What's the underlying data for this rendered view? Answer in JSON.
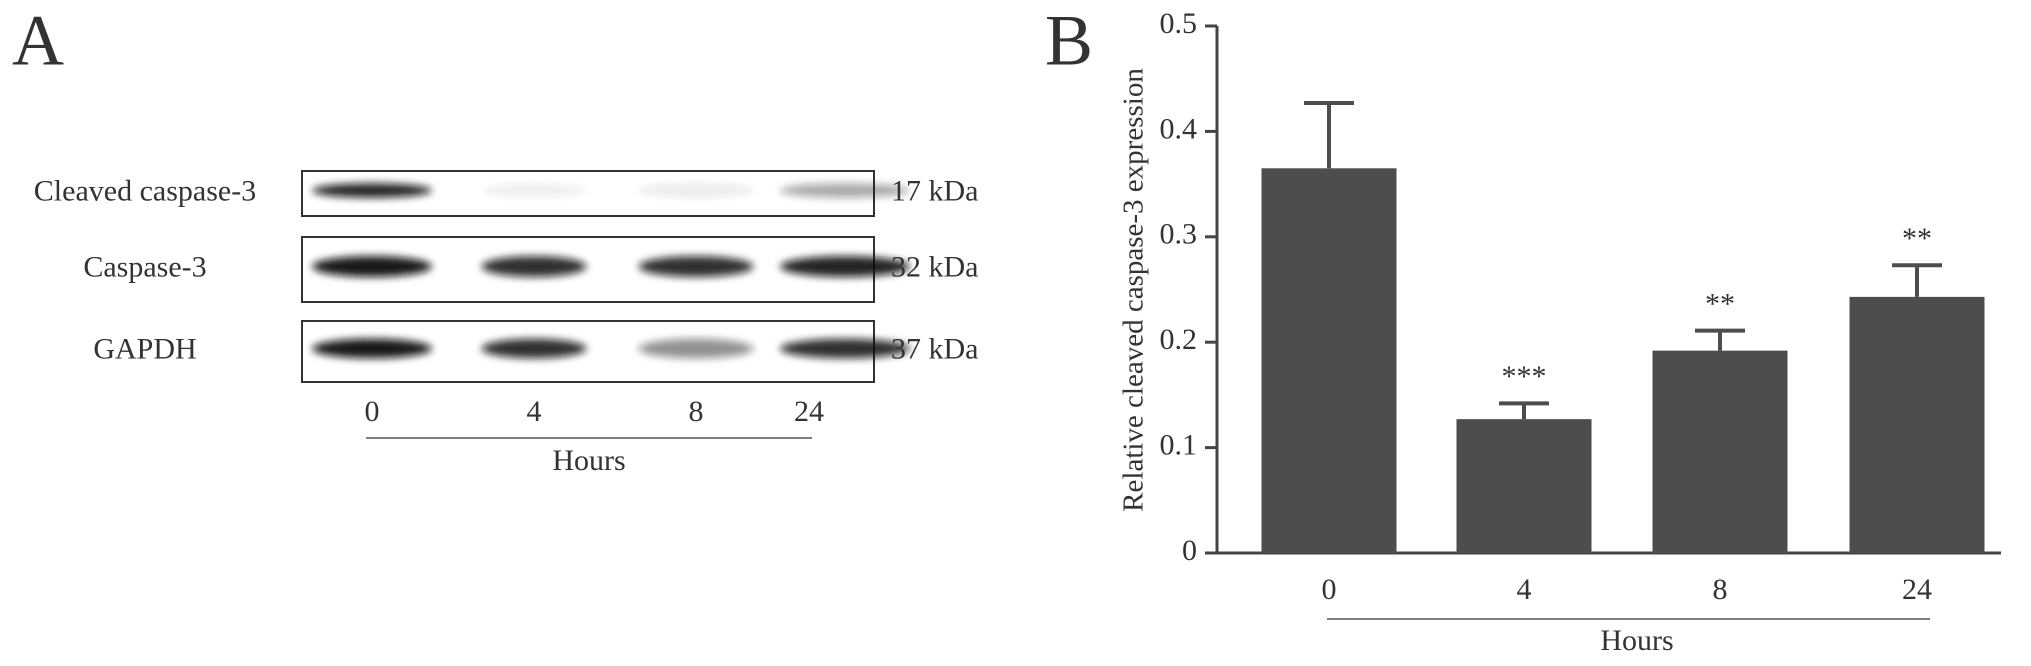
{
  "panel_a": {
    "label": "A",
    "rows": [
      {
        "name": "Cleaved caspase-3",
        "size": "17 kDa"
      },
      {
        "name": "Caspase-3",
        "size": "32 kDa"
      },
      {
        "name": "GAPDH",
        "size": "37 kDa"
      }
    ],
    "lanes": [
      "0",
      "4",
      "8",
      "24"
    ],
    "xlabel": "Hours"
  },
  "chart_data": {
    "type": "bar",
    "label": "B",
    "ylabel": "Relative cleaved caspase-3 expression",
    "xlabel": "Hours",
    "categories": [
      "0",
      "4",
      "8",
      "24"
    ],
    "values": [
      0.365,
      0.127,
      0.192,
      0.243
    ],
    "errors": [
      0.062,
      0.015,
      0.019,
      0.03
    ],
    "annotations": [
      null,
      "***",
      "**",
      "**"
    ],
    "color": "#4d4d4d",
    "ylim": [
      0,
      0.5
    ],
    "yticks": [
      0,
      0.1,
      0.2,
      0.3,
      0.4,
      0.5
    ]
  }
}
